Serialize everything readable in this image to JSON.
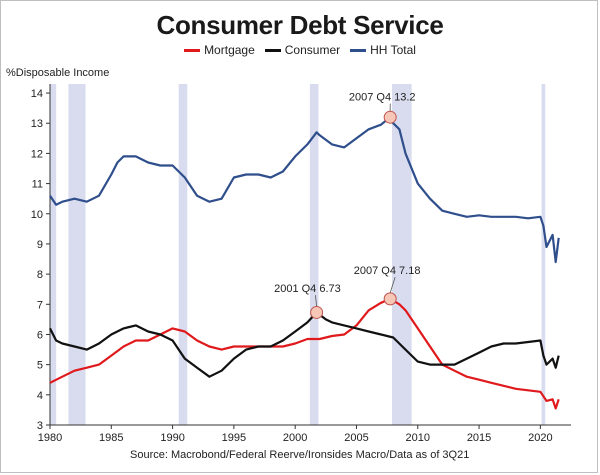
{
  "chart_data": {
    "type": "line",
    "title": "Consumer Debt Service",
    "ylabel": "%Disposable Income",
    "xlabel": "",
    "source": "Source: Macrobond/Federal Reerve/Ironsides Macro/Data as of 3Q21",
    "xlim": [
      1980,
      2022.5
    ],
    "ylim": [
      3,
      14.3
    ],
    "x_ticks": [
      1980,
      1985,
      1990,
      1995,
      2000,
      2005,
      2010,
      2015,
      2020
    ],
    "y_ticks": [
      3,
      4,
      5,
      6,
      7,
      8,
      9,
      10,
      11,
      12,
      13,
      14
    ],
    "grid": false,
    "legend_position": "top-center",
    "recession_bands": [
      [
        1980.0,
        1980.5
      ],
      [
        1981.5,
        1982.9
      ],
      [
        1990.5,
        1991.2
      ],
      [
        2001.2,
        2001.9
      ],
      [
        2007.9,
        2009.5
      ],
      [
        2020.1,
        2020.4
      ]
    ],
    "series": [
      {
        "name": "Mortgage",
        "color": "#e0191c",
        "x": [
          1980,
          1981,
          1982,
          1983,
          1984,
          1985,
          1986,
          1987,
          1988,
          1989,
          1990,
          1991,
          1992,
          1993,
          1994,
          1995,
          1996,
          1997,
          1998,
          1999,
          2000,
          2001,
          2002,
          2003,
          2004,
          2005,
          2006,
          2007,
          2007.75,
          2008.5,
          2009,
          2010,
          2011,
          2012,
          2013,
          2014,
          2015,
          2016,
          2017,
          2018,
          2019,
          2020,
          2020.5,
          2021,
          2021.25,
          2021.5
        ],
        "values": [
          4.4,
          4.6,
          4.8,
          4.9,
          5.0,
          5.3,
          5.6,
          5.8,
          5.8,
          6.0,
          6.2,
          6.1,
          5.8,
          5.6,
          5.5,
          5.6,
          5.6,
          5.6,
          5.6,
          5.6,
          5.7,
          5.85,
          5.85,
          5.95,
          6.0,
          6.3,
          6.8,
          7.05,
          7.18,
          7.0,
          6.8,
          6.2,
          5.6,
          5.0,
          4.8,
          4.6,
          4.5,
          4.4,
          4.3,
          4.2,
          4.15,
          4.1,
          3.8,
          3.85,
          3.55,
          3.85
        ]
      },
      {
        "name": "Consumer",
        "color": "#111111",
        "x": [
          1980,
          1980.5,
          1981,
          1982,
          1983,
          1984,
          1985,
          1986,
          1987,
          1988,
          1989,
          1990,
          1991,
          1992,
          1993,
          1994,
          1995,
          1996,
          1997,
          1998,
          1999,
          2000,
          2001,
          2001.75,
          2002.5,
          2003,
          2004,
          2005,
          2006,
          2007,
          2008,
          2009,
          2010,
          2011,
          2012,
          2013,
          2014,
          2015,
          2016,
          2017,
          2018,
          2019,
          2020,
          2020.25,
          2020.5,
          2021,
          2021.25,
          2021.5
        ],
        "values": [
          6.2,
          5.8,
          5.7,
          5.6,
          5.5,
          5.7,
          6.0,
          6.2,
          6.3,
          6.1,
          6.0,
          5.8,
          5.2,
          4.9,
          4.6,
          4.8,
          5.2,
          5.5,
          5.6,
          5.6,
          5.8,
          6.1,
          6.4,
          6.73,
          6.5,
          6.4,
          6.3,
          6.2,
          6.1,
          6.0,
          5.9,
          5.5,
          5.1,
          5.0,
          5.0,
          5.0,
          5.2,
          5.4,
          5.6,
          5.7,
          5.7,
          5.75,
          5.8,
          5.3,
          5.0,
          5.2,
          4.9,
          5.3
        ]
      },
      {
        "name": "HH Total",
        "color": "#2f4e8c",
        "x": [
          1980,
          1980.5,
          1981,
          1982,
          1983,
          1984,
          1985,
          1985.5,
          1986,
          1987,
          1988,
          1989,
          1990,
          1991,
          1992,
          1993,
          1994,
          1995,
          1996,
          1997,
          1998,
          1999,
          2000,
          2001,
          2001.75,
          2002,
          2003,
          2004,
          2005,
          2006,
          2007,
          2007.75,
          2008,
          2008.5,
          2009,
          2010,
          2011,
          2012,
          2013,
          2014,
          2015,
          2016,
          2017,
          2018,
          2019,
          2020,
          2020.25,
          2020.5,
          2021,
          2021.25,
          2021.5
        ],
        "values": [
          10.6,
          10.3,
          10.4,
          10.5,
          10.4,
          10.6,
          11.3,
          11.7,
          11.9,
          11.9,
          11.7,
          11.6,
          11.6,
          11.2,
          10.6,
          10.4,
          10.5,
          11.2,
          11.3,
          11.3,
          11.2,
          11.4,
          11.9,
          12.3,
          12.7,
          12.6,
          12.3,
          12.2,
          12.5,
          12.8,
          12.95,
          13.2,
          13.0,
          12.8,
          12.0,
          11.0,
          10.5,
          10.1,
          10.0,
          9.9,
          9.95,
          9.9,
          9.9,
          9.9,
          9.85,
          9.9,
          9.6,
          8.9,
          9.3,
          8.4,
          9.2
        ]
      }
    ],
    "annotations": [
      {
        "text": "2007 Q4 13.2",
        "series": "HH Total",
        "x": 2007.75,
        "y": 13.2,
        "label_x": 2007.1,
        "label_y": 13.75
      },
      {
        "text": "2001 Q4 6.73",
        "series": "Consumer",
        "x": 2001.75,
        "y": 6.73,
        "label_x": 2001.0,
        "label_y": 7.4
      },
      {
        "text": "2007 Q4 7.18",
        "series": "Mortgage",
        "x": 2007.75,
        "y": 7.18,
        "label_x": 2007.5,
        "label_y": 8.0
      }
    ]
  }
}
